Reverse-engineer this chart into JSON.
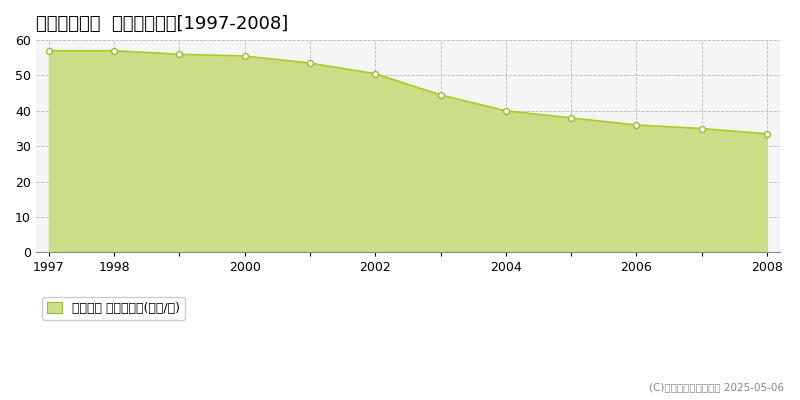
{
  "title": "鳥取市田園町  基準地価推移[1997-2008]",
  "years": [
    1997,
    1998,
    1999,
    2000,
    2001,
    2002,
    2003,
    2004,
    2005,
    2006,
    2007,
    2008
  ],
  "values": [
    57.0,
    57.0,
    56.0,
    55.5,
    53.5,
    50.5,
    44.5,
    40.0,
    38.0,
    36.0,
    35.0,
    33.5
  ],
  "ylim": [
    0,
    60
  ],
  "yticks": [
    0,
    10,
    20,
    30,
    40,
    50,
    60
  ],
  "xticks_shown": [
    1997,
    1998,
    2000,
    2002,
    2004,
    2006,
    2008
  ],
  "xticks_all": [
    1997,
    1998,
    1999,
    2000,
    2001,
    2002,
    2003,
    2004,
    2005,
    2006,
    2007,
    2008
  ],
  "xlim": [
    1997,
    2008
  ],
  "line_color": "#aacc22",
  "fill_color": "#ccdd88",
  "fill_alpha": 1.0,
  "marker_facecolor": "white",
  "marker_edgecolor": "#99bb33",
  "background_color": "#f5f5f5",
  "plot_bg_color": "#f5f5f5",
  "grid_color": "#bbbbbb",
  "legend_label": "基準地価 平均坪単価(万円/坪)",
  "copyright_text": "(C)土地価格ドットコム 2025-05-06",
  "title_fontsize": 13,
  "axis_fontsize": 9,
  "legend_fontsize": 9
}
